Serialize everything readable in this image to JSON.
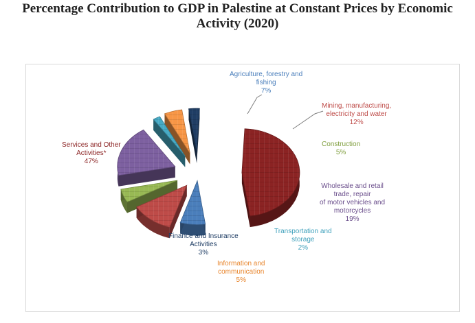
{
  "title_lines": [
    "Percentage Contribution to GDP in Palestine at Constant Prices by Economic",
    "Activity (2020)"
  ],
  "chart_data": {
    "type": "pie",
    "title": "Percentage Contribution to GDP in Palestine at Constant Prices by Economic Activity (2020)",
    "style": "3d-exploded",
    "legend": "none",
    "slices": [
      {
        "label_lines": [
          "Agriculture, forestry and",
          "fishing"
        ],
        "value_label": "7%",
        "value": 7,
        "color": "#4a7ebb",
        "label_color": "#4a7ebb"
      },
      {
        "label_lines": [
          "Mining, manufacturing,",
          "electricity and water"
        ],
        "value_label": "12%",
        "value": 12,
        "color": "#be4b48",
        "label_color": "#be4b48"
      },
      {
        "label_lines": [
          "Construction"
        ],
        "value_label": "5%",
        "value": 5,
        "color": "#98b954",
        "label_color": "#7d9c3a"
      },
      {
        "label_lines": [
          "Wholesale and retail",
          "trade, repair",
          "of motor vehicles and",
          "motorcycles"
        ],
        "value_label": "19%",
        "value": 19,
        "color": "#7d60a0",
        "label_color": "#6b4f8c"
      },
      {
        "label_lines": [
          "Transportation and",
          "storage"
        ],
        "value_label": "2%",
        "value": 2,
        "color": "#46aac5",
        "label_color": "#3ea0bb"
      },
      {
        "label_lines": [
          "Information and",
          "communication"
        ],
        "value_label": "5%",
        "value": 5,
        "color": "#f79646",
        "label_color": "#e8862e"
      },
      {
        "label_lines": [
          "Finance and Insurance",
          "Activities"
        ],
        "value_label": "3%",
        "value": 3,
        "color": "#1f3d64",
        "label_color": "#1f3d64"
      },
      {
        "label_lines": [
          "Services and Other",
          "Activities*"
        ],
        "value_label": "47%",
        "value": 47,
        "color": "#8b2323",
        "label_color": "#8b2323"
      }
    ]
  }
}
